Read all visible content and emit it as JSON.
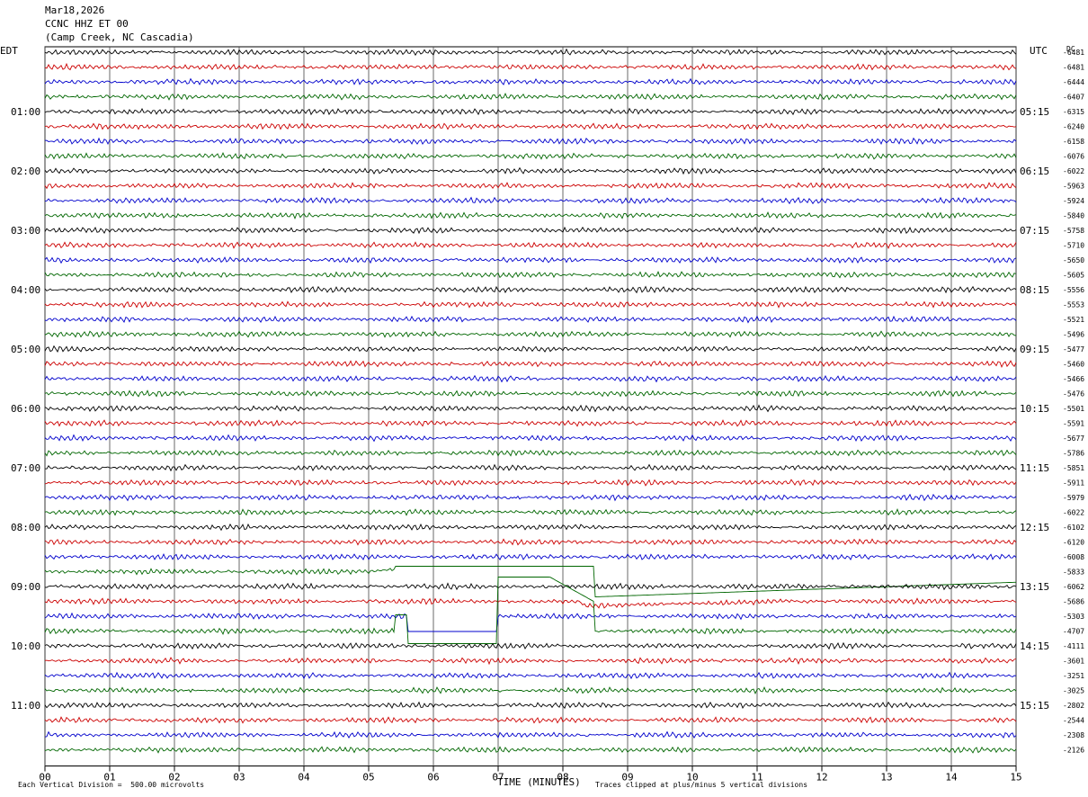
{
  "header": {
    "date": "Mar18,2026",
    "station": "CCNC HHZ ET 00",
    "location": "(Camp Creek, NC Cascadia)"
  },
  "left_label": "EDT",
  "right_label": "UTC",
  "dc_label": "DC",
  "footer": {
    "xlabel": "TIME (MINUTES)",
    "scale_note": "Each Vertical Division =  500.00 microvolts",
    "clip_note": "Traces clipped at plus/minus 5 vertical divisions"
  },
  "colors": {
    "trace_cycle": [
      "#000000",
      "#cc0000",
      "#0000cc",
      "#006600"
    ],
    "grid": "#000000"
  },
  "chart_data": {
    "type": "line",
    "title": "",
    "xlabel": "TIME (MINUTES)",
    "xlim": [
      0,
      15
    ],
    "x_ticks": [
      "00",
      "01",
      "02",
      "03",
      "04",
      "05",
      "06",
      "07",
      "08",
      "09",
      "10",
      "11",
      "12",
      "13",
      "14",
      "15"
    ],
    "rows": 48,
    "row_minutes": 15,
    "left_hour_labels": [
      "01:00",
      "02:00",
      "03:00",
      "04:00",
      "05:00",
      "06:00",
      "07:00",
      "08:00",
      "09:00",
      "10:00",
      "11:00"
    ],
    "right_hour_labels": [
      "05:15",
      "06:15",
      "07:15",
      "08:15",
      "09:15",
      "10:15",
      "11:15",
      "12:15",
      "13:15",
      "14:15",
      "15:15"
    ],
    "dc_offsets": [
      "-6481",
      "-6481",
      "-6444",
      "-6407",
      "-6315",
      "-6240",
      "-6158",
      "-6076",
      "-6022",
      "-5963",
      "-5924",
      "-5840",
      "-5758",
      "-5710",
      "-5650",
      "-5605",
      "-5556",
      "-5553",
      "-5521",
      "-5496",
      "-5477",
      "-5460",
      "-5466",
      "-5476",
      "-5501",
      "-5591",
      "-5677",
      "-5786",
      "-5851",
      "-5911",
      "-5979",
      "-6022",
      "-6102",
      "-6120",
      "-6008",
      "-5833",
      "-6062",
      "-5686",
      "-5303",
      "-4707",
      "-4111",
      "-3601",
      "-3251",
      "-3025",
      "-2802",
      "-2544",
      "-2308",
      "-2126"
    ],
    "event": {
      "description": "Large clipped signal",
      "rows": [
        35,
        39
      ],
      "start_minute": 5.0,
      "end_minute": 15.0
    }
  }
}
